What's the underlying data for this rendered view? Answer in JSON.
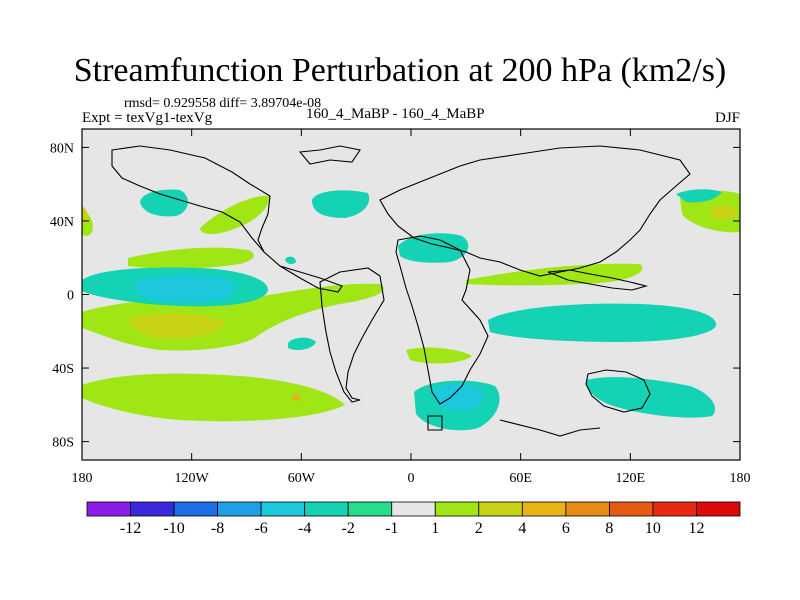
{
  "title": "Streamfunction Perturbation at 200 hPa (km2/s)",
  "stats": "rmsd= 0.929558 diff= 3.89704e-08",
  "experiment": "Expt = texVg1-texVg",
  "subtitle": "160_4_MaBP - 160_4_MaBP",
  "season": "DJF",
  "chart_data": {
    "type": "heatmap",
    "title": "Streamfunction Perturbation at 200 hPa (km2/s)",
    "xlabel": "",
    "ylabel": "",
    "xlim": [
      -180,
      180
    ],
    "ylim": [
      -90,
      90
    ],
    "x_ticks": [
      {
        "value": -180,
        "label": "180"
      },
      {
        "value": -120,
        "label": "120W"
      },
      {
        "value": -60,
        "label": "60W"
      },
      {
        "value": 0,
        "label": "0"
      },
      {
        "value": 60,
        "label": "60E"
      },
      {
        "value": 120,
        "label": "120E"
      },
      {
        "value": 180,
        "label": "180"
      }
    ],
    "y_ticks": [
      {
        "value": 80,
        "label": "80N"
      },
      {
        "value": 40,
        "label": "40N"
      },
      {
        "value": 0,
        "label": "0"
      },
      {
        "value": -40,
        "label": "40S"
      },
      {
        "value": -80,
        "label": "80S"
      }
    ],
    "colorbar": {
      "labels": [
        "-12",
        "-10",
        "-8",
        "-6",
        "-4",
        "-2",
        "-1",
        "1",
        "2",
        "4",
        "6",
        "8",
        "10",
        "12"
      ],
      "colors": [
        "#8a1ee6",
        "#3c28dc",
        "#1e6ee6",
        "#1ea0e6",
        "#1ec8dc",
        "#14d2b4",
        "#28dc8c",
        "#e6e6e6",
        "#a0e614",
        "#c8d214",
        "#e6b414",
        "#e68c14",
        "#e65a14",
        "#e62814",
        "#dc0a0a"
      ]
    },
    "regions": [
      {
        "lon": -132,
        "lat": 1,
        "rlon": 30,
        "rlat": 6,
        "value": -4
      },
      {
        "lon": -132,
        "lat": 1,
        "rlon": 42,
        "rlat": 11,
        "value": -2
      },
      {
        "lon": -125,
        "lat": -18,
        "rlon": 18,
        "rlat": 6,
        "value": 4
      },
      {
        "lon": -120,
        "lat": -18,
        "rlon": 38,
        "rlat": 12,
        "value": 2
      },
      {
        "lon": -130,
        "lat": -52,
        "rlon": 70,
        "rlat": 16,
        "value": 2
      },
      {
        "lon": -62,
        "lat": -55,
        "rlon": 5,
        "rlat": 2,
        "value": 4
      },
      {
        "lon": 17,
        "lat": -57,
        "rlon": 14,
        "rlat": 7,
        "value": -4
      },
      {
        "lon": 17,
        "lat": -58,
        "rlon": 22,
        "rlat": 14,
        "value": -2
      },
      {
        "lon": 105,
        "lat": -58,
        "rlon": 55,
        "rlat": 11,
        "value": -2
      },
      {
        "lon": 112,
        "lat": -18,
        "rlon": 70,
        "rlat": 10,
        "value": -2
      },
      {
        "lon": 165,
        "lat": 47,
        "rlon": 25,
        "rlat": 12,
        "value": -2
      },
      {
        "lon": 163,
        "lat": 45,
        "rlon": 8,
        "rlat": 4,
        "value": 4
      },
      {
        "lon": -180,
        "lat": 45,
        "rlon": 4,
        "rlat": 12,
        "value": 2
      },
      {
        "lon": -176,
        "lat": 45,
        "rlon": 2,
        "rlat": 4,
        "value": 4
      },
      {
        "lon": 5,
        "lat": 26,
        "rlon": 15,
        "rlat": 9,
        "value": -2
      },
      {
        "lon": -44,
        "lat": 51,
        "rlon": 16,
        "rlat": 9,
        "value": -2
      },
      {
        "lon": -122,
        "lat": 50,
        "rlon": 14,
        "rlat": 8,
        "value": -2
      },
      {
        "lon": -20,
        "lat": -32,
        "rlon": 30,
        "rlat": 5,
        "value": 2
      },
      {
        "lon": -40,
        "lat": -7,
        "rlon": 40,
        "rlat": 6,
        "value": 2
      }
    ]
  }
}
